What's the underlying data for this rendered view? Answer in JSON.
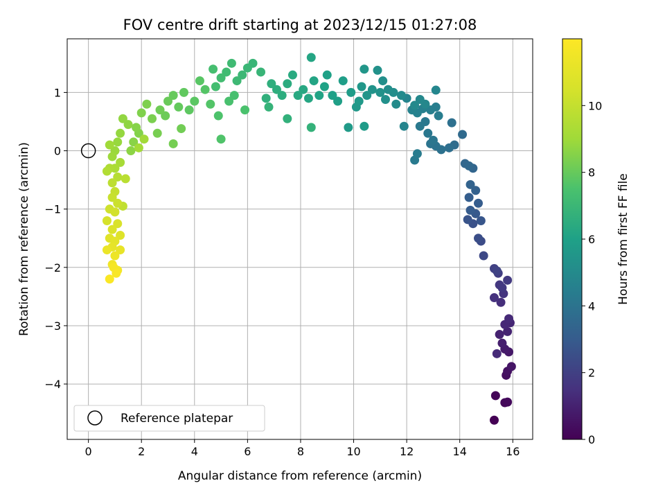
{
  "chart_data": {
    "type": "scatter",
    "title": "FOV centre drift starting at 2023/12/15 01:27:08",
    "xlabel": "Angular distance from reference (arcmin)",
    "ylabel": "Rotation from reference (arcmin)",
    "xlim": [
      -0.8,
      16.75
    ],
    "ylim": [
      -4.95,
      1.92
    ],
    "xticks": [
      0,
      2,
      4,
      6,
      8,
      10,
      12,
      14,
      16
    ],
    "yticks": [
      -4,
      -3,
      -2,
      -1,
      0,
      1
    ],
    "xtick_labels": [
      "0",
      "2",
      "4",
      "6",
      "8",
      "10",
      "12",
      "14",
      "16"
    ],
    "ytick_labels": [
      "−4",
      "−3",
      "−2",
      "−1",
      "0",
      "1"
    ],
    "grid": true,
    "colormap": "viridis",
    "colorbar": {
      "label": "Hours from first FF file",
      "range": [
        0,
        12
      ],
      "ticks": [
        0,
        2,
        4,
        6,
        8,
        10
      ],
      "tick_labels": [
        "0",
        "2",
        "4",
        "6",
        "8",
        "10"
      ]
    },
    "reference": {
      "x": 0,
      "y": 0
    },
    "legend": {
      "label": "Reference platepar",
      "placement": "lower-left"
    },
    "series": [
      {
        "comment_free_points": true,
        "points": [
          [
            15.3,
            -4.62,
            0.0
          ],
          [
            15.35,
            -4.2,
            0.1
          ],
          [
            15.7,
            -4.32,
            0.2
          ],
          [
            15.8,
            -4.31,
            0.25
          ],
          [
            15.75,
            -3.85,
            0.4
          ],
          [
            15.8,
            -3.78,
            0.5
          ],
          [
            15.95,
            -3.7,
            0.6
          ],
          [
            15.85,
            -3.45,
            0.7
          ],
          [
            15.7,
            -3.4,
            0.8
          ],
          [
            15.6,
            -3.3,
            0.9
          ],
          [
            15.5,
            -3.15,
            1.0
          ],
          [
            15.8,
            -3.1,
            1.05
          ],
          [
            15.9,
            -2.95,
            1.1
          ],
          [
            15.7,
            -2.98,
            1.2
          ],
          [
            15.85,
            -2.88,
            1.25
          ],
          [
            15.4,
            -3.48,
            1.3
          ],
          [
            15.55,
            -2.6,
            1.4
          ],
          [
            15.3,
            -2.52,
            1.5
          ],
          [
            15.65,
            -2.45,
            1.6
          ],
          [
            15.5,
            -2.3,
            1.7
          ],
          [
            15.6,
            -2.35,
            1.75
          ],
          [
            15.8,
            -2.22,
            1.8
          ],
          [
            15.45,
            -2.1,
            1.9
          ],
          [
            15.3,
            -2.02,
            2.0
          ],
          [
            15.4,
            -2.06,
            2.1
          ],
          [
            14.9,
            -1.8,
            2.3
          ],
          [
            14.8,
            -1.55,
            2.4
          ],
          [
            14.7,
            -1.5,
            2.5
          ],
          [
            14.5,
            -1.25,
            2.6
          ],
          [
            14.3,
            -1.18,
            2.7
          ],
          [
            14.8,
            -1.2,
            2.8
          ],
          [
            14.6,
            -1.08,
            2.9
          ],
          [
            14.4,
            -1.02,
            3.0
          ],
          [
            14.7,
            -0.9,
            3.05
          ],
          [
            14.35,
            -0.8,
            3.1
          ],
          [
            14.6,
            -0.68,
            3.2
          ],
          [
            14.4,
            -0.58,
            3.3
          ],
          [
            14.5,
            -0.3,
            3.4
          ],
          [
            14.2,
            -0.22,
            3.45
          ],
          [
            14.35,
            -0.26,
            3.5
          ],
          [
            14.1,
            0.28,
            3.6
          ],
          [
            13.8,
            0.1,
            3.7
          ],
          [
            13.6,
            0.05,
            3.8
          ],
          [
            13.7,
            0.48,
            3.85
          ],
          [
            13.3,
            0.02,
            3.9
          ],
          [
            13.1,
            0.08,
            4.0
          ],
          [
            12.9,
            0.12,
            4.05
          ],
          [
            13.0,
            0.18,
            4.1
          ],
          [
            12.8,
            0.3,
            4.15
          ],
          [
            12.7,
            0.5,
            4.2
          ],
          [
            12.5,
            0.42,
            4.25
          ],
          [
            12.3,
            -0.16,
            4.3
          ],
          [
            12.4,
            -0.05,
            4.35
          ],
          [
            13.2,
            0.6,
            4.4
          ],
          [
            13.1,
            0.75,
            4.45
          ],
          [
            12.9,
            0.7,
            4.5
          ],
          [
            12.6,
            0.72,
            4.55
          ],
          [
            12.4,
            0.65,
            4.6
          ],
          [
            12.2,
            0.7,
            4.65
          ],
          [
            12.0,
            0.9,
            4.7
          ],
          [
            11.9,
            0.42,
            4.75
          ],
          [
            13.1,
            1.04,
            4.8
          ],
          [
            12.7,
            0.8,
            4.85
          ],
          [
            12.5,
            0.88,
            4.9
          ],
          [
            12.3,
            0.78,
            4.95
          ],
          [
            11.8,
            0.95,
            5.0
          ],
          [
            11.6,
            0.8,
            5.05
          ],
          [
            11.5,
            1.0,
            5.1
          ],
          [
            11.3,
            1.05,
            5.15
          ],
          [
            11.1,
            1.2,
            5.2
          ],
          [
            11.2,
            0.88,
            5.25
          ],
          [
            10.9,
            1.38,
            5.3
          ],
          [
            11.0,
            1.0,
            5.35
          ],
          [
            10.7,
            1.05,
            5.4
          ],
          [
            10.5,
            0.95,
            5.45
          ],
          [
            10.4,
            1.4,
            5.5
          ],
          [
            10.3,
            1.1,
            5.55
          ],
          [
            10.1,
            0.75,
            5.6
          ],
          [
            10.2,
            0.85,
            5.65
          ],
          [
            9.8,
            0.4,
            5.7
          ],
          [
            10.4,
            0.42,
            5.75
          ],
          [
            9.9,
            1.0,
            5.8
          ],
          [
            9.6,
            1.2,
            5.85
          ],
          [
            9.4,
            0.85,
            5.9
          ],
          [
            9.2,
            0.95,
            5.95
          ],
          [
            9.0,
            1.3,
            6.0
          ],
          [
            8.9,
            1.1,
            6.05
          ],
          [
            8.7,
            0.95,
            6.1
          ],
          [
            8.5,
            1.2,
            6.15
          ],
          [
            8.4,
            1.6,
            6.2
          ],
          [
            8.3,
            0.9,
            6.25
          ],
          [
            8.1,
            1.05,
            6.3
          ],
          [
            7.9,
            0.95,
            6.35
          ],
          [
            7.7,
            1.3,
            6.4
          ],
          [
            7.5,
            1.15,
            6.45
          ],
          [
            7.3,
            0.95,
            6.5
          ],
          [
            7.1,
            1.05,
            6.55
          ],
          [
            6.9,
            1.15,
            6.6
          ],
          [
            6.7,
            0.9,
            6.65
          ],
          [
            7.5,
            0.55,
            6.7
          ],
          [
            8.4,
            0.4,
            6.75
          ],
          [
            6.8,
            0.75,
            6.8
          ],
          [
            6.5,
            1.35,
            6.9
          ],
          [
            6.2,
            1.5,
            6.95
          ],
          [
            6.0,
            1.42,
            7.0
          ],
          [
            5.8,
            1.3,
            7.05
          ],
          [
            5.6,
            1.2,
            7.1
          ],
          [
            5.4,
            1.5,
            7.15
          ],
          [
            5.2,
            1.35,
            7.2
          ],
          [
            5.0,
            1.25,
            7.25
          ],
          [
            4.8,
            1.1,
            7.3
          ],
          [
            4.7,
            1.4,
            7.35
          ],
          [
            5.5,
            0.95,
            7.4
          ],
          [
            5.3,
            0.85,
            7.45
          ],
          [
            5.9,
            0.7,
            7.5
          ],
          [
            4.9,
            0.6,
            7.55
          ],
          [
            5.0,
            0.2,
            7.6
          ],
          [
            4.6,
            0.8,
            7.65
          ],
          [
            4.4,
            1.05,
            7.7
          ],
          [
            4.2,
            1.2,
            7.75
          ],
          [
            4.0,
            0.85,
            7.8
          ],
          [
            3.8,
            0.7,
            7.85
          ],
          [
            3.6,
            1.0,
            7.9
          ],
          [
            3.4,
            0.75,
            7.95
          ],
          [
            3.2,
            0.95,
            8.0
          ],
          [
            3.0,
            0.85,
            8.05
          ],
          [
            2.9,
            0.6,
            8.1
          ],
          [
            2.7,
            0.7,
            8.15
          ],
          [
            3.5,
            0.38,
            8.2
          ],
          [
            3.2,
            0.12,
            8.25
          ],
          [
            2.6,
            0.3,
            8.3
          ],
          [
            2.4,
            0.55,
            8.35
          ],
          [
            2.2,
            0.8,
            8.4
          ],
          [
            2.0,
            0.65,
            8.45
          ],
          [
            1.9,
            0.3,
            8.5
          ],
          [
            1.8,
            0.4,
            8.55
          ],
          [
            1.7,
            0.15,
            8.6
          ],
          [
            1.6,
            0.0,
            8.65
          ],
          [
            1.5,
            0.45,
            8.7
          ],
          [
            1.3,
            0.55,
            8.75
          ],
          [
            1.2,
            0.3,
            8.8
          ],
          [
            1.1,
            0.15,
            8.85
          ],
          [
            1.0,
            0.0,
            8.9
          ],
          [
            0.9,
            -0.1,
            8.95
          ],
          [
            0.8,
            0.1,
            9.0
          ],
          [
            2.1,
            0.2,
            9.05
          ],
          [
            1.9,
            0.05,
            9.1
          ],
          [
            1.2,
            -0.2,
            9.2
          ],
          [
            1.0,
            -0.3,
            9.3
          ],
          [
            0.8,
            -0.3,
            9.4
          ],
          [
            0.7,
            -0.35,
            9.5
          ],
          [
            1.1,
            -0.45,
            9.6
          ],
          [
            1.4,
            -0.48,
            9.7
          ],
          [
            0.9,
            -0.55,
            9.8
          ],
          [
            1.3,
            -0.95,
            9.9
          ],
          [
            1.0,
            -0.7,
            10.0
          ],
          [
            0.9,
            -0.8,
            10.1
          ],
          [
            1.1,
            -0.9,
            10.2
          ],
          [
            0.8,
            -1.0,
            10.3
          ],
          [
            1.0,
            -1.05,
            10.4
          ],
          [
            0.7,
            -1.2,
            10.5
          ],
          [
            1.1,
            -1.25,
            10.6
          ],
          [
            0.9,
            -1.35,
            10.7
          ],
          [
            1.2,
            -1.45,
            10.8
          ],
          [
            0.8,
            -1.5,
            10.9
          ],
          [
            1.0,
            -1.55,
            11.0
          ],
          [
            0.9,
            -1.65,
            11.1
          ],
          [
            1.2,
            -1.7,
            11.2
          ],
          [
            0.7,
            -1.7,
            11.3
          ],
          [
            1.0,
            -1.8,
            11.4
          ],
          [
            0.9,
            -1.95,
            11.5
          ],
          [
            1.1,
            -2.05,
            11.6
          ],
          [
            0.95,
            -2.0,
            11.7
          ],
          [
            1.05,
            -2.1,
            11.8
          ],
          [
            0.8,
            -2.2,
            11.9
          ]
        ]
      }
    ]
  }
}
